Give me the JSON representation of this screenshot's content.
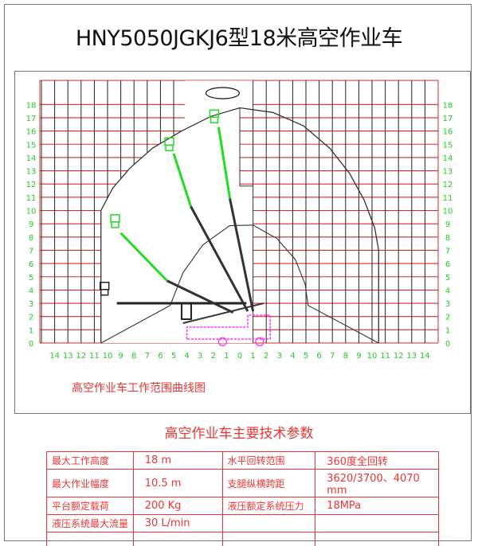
{
  "title": "HNY5050JGKJ6型18米高空作业车",
  "chart": {
    "caption": "高空作业车工作范围曲线图",
    "x_ticks": [
      "14",
      "13",
      "12",
      "11",
      "10",
      "9",
      "8",
      "7",
      "6",
      "5",
      "4",
      "3",
      "2",
      "1",
      "0",
      "1",
      "2",
      "3",
      "4",
      "5",
      "6",
      "7",
      "8",
      "9",
      "10",
      "11",
      "12",
      "13",
      "14"
    ],
    "y_ticks_left": [
      "0",
      "1",
      "2",
      "3",
      "4",
      "5",
      "6",
      "7",
      "8",
      "9",
      "10",
      "11",
      "12",
      "13",
      "14",
      "15",
      "16",
      "17",
      "18"
    ],
    "y_ticks_right": [
      "0",
      "1",
      "2",
      "3",
      "4",
      "5",
      "6",
      "7",
      "8",
      "9",
      "10",
      "11",
      "12",
      "13",
      "14",
      "15",
      "16",
      "17",
      "18"
    ],
    "max_height_m": 18,
    "max_reach_m": 10.5,
    "colors": {
      "grid": "#d22b2b",
      "labels": "#22cc22",
      "boom_green": "#22dd22",
      "truck": "#ff33ff",
      "envelope": "#333333"
    }
  },
  "specs": {
    "title": "高空作业车主要技术参数",
    "rows": [
      [
        "最大工作高度",
        "18 m",
        "水平回转范围",
        "360度全回转"
      ],
      [
        "最大作业幅度",
        "10.5 m",
        "支腿纵横跨距",
        "3620/3700、4070 mm"
      ],
      [
        "平台额定载荷",
        "200 Kg",
        "液压额定系统压力",
        "18MPa"
      ],
      [
        "液压系统最大流量",
        "30 L/min",
        "",
        ""
      ],
      [
        "",
        "",
        "",
        ""
      ]
    ],
    "text_color": "#e33333"
  }
}
